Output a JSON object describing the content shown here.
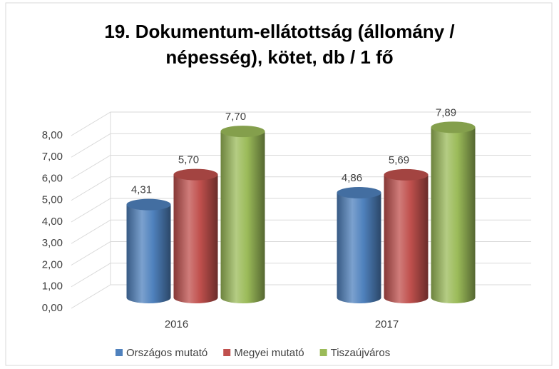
{
  "chart_data": {
    "type": "bar3d",
    "title": "19. Dokumentum-ellátottság (állomány / népesség), kötet, db / 1 fő",
    "categories": [
      "2016",
      "2017"
    ],
    "series": [
      {
        "name": "Országos mutató",
        "color": "#4f81bd",
        "values": [
          4.31,
          4.86
        ],
        "value_labels": [
          "4,31",
          "4,86"
        ]
      },
      {
        "name": "Megyei mutató",
        "color": "#c0504d",
        "values": [
          5.7,
          5.69
        ],
        "value_labels": [
          "5,70",
          "5,69"
        ]
      },
      {
        "name": "Tiszaújváros",
        "color": "#9bbb59",
        "values": [
          7.7,
          7.89
        ],
        "value_labels": [
          "7,70",
          "7,89"
        ]
      }
    ],
    "ylim": [
      0,
      8
    ],
    "yticks": [
      {
        "value": 0,
        "label": "0,00"
      },
      {
        "value": 1,
        "label": "1,00"
      },
      {
        "value": 2,
        "label": "2,00"
      },
      {
        "value": 3,
        "label": "3,00"
      },
      {
        "value": 4,
        "label": "4,00"
      },
      {
        "value": 5,
        "label": "5,00"
      },
      {
        "value": 6,
        "label": "6,00"
      },
      {
        "value": 7,
        "label": "7,00"
      },
      {
        "value": 8,
        "label": "8,00"
      }
    ],
    "grid": true,
    "legend": "bottom"
  }
}
